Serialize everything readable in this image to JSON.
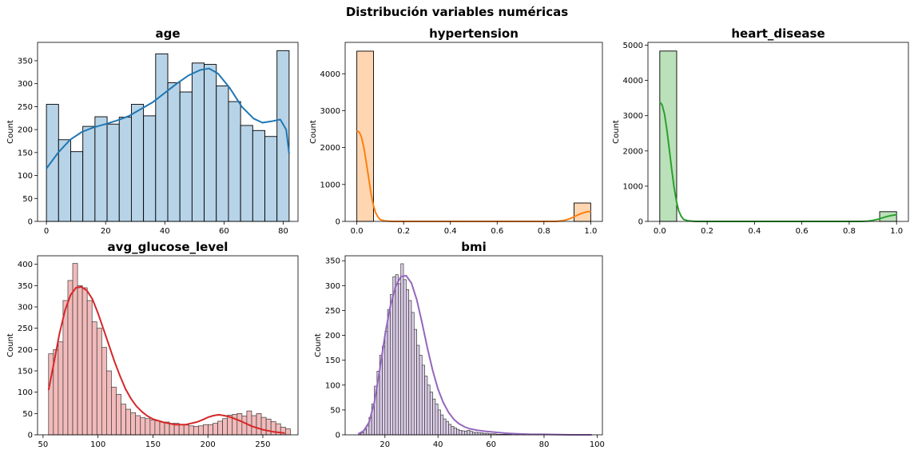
{
  "suptitle": "Distribución variables numéricas",
  "chart_data": [
    {
      "type": "histogram",
      "title": "age",
      "xlabel": "",
      "ylabel": "Count",
      "color": "#1f77b4",
      "xlim": [
        -3,
        85
      ],
      "ylim": [
        0,
        390
      ],
      "xticks": [
        0,
        20,
        40,
        60,
        80
      ],
      "yticks": [
        0,
        50,
        100,
        150,
        200,
        250,
        300,
        350
      ],
      "bins": [
        {
          "x0": 0.0,
          "x1": 4.1,
          "count": 255
        },
        {
          "x0": 4.1,
          "x1": 8.2,
          "count": 178
        },
        {
          "x0": 8.2,
          "x1": 12.3,
          "count": 152
        },
        {
          "x0": 12.3,
          "x1": 16.4,
          "count": 207
        },
        {
          "x0": 16.4,
          "x1": 20.5,
          "count": 228
        },
        {
          "x0": 20.5,
          "x1": 24.6,
          "count": 212
        },
        {
          "x0": 24.6,
          "x1": 28.7,
          "count": 227
        },
        {
          "x0": 28.7,
          "x1": 32.8,
          "count": 255
        },
        {
          "x0": 32.8,
          "x1": 36.9,
          "count": 230
        },
        {
          "x0": 36.9,
          "x1": 41.0,
          "count": 365
        },
        {
          "x0": 41.0,
          "x1": 45.1,
          "count": 302
        },
        {
          "x0": 45.1,
          "x1": 49.2,
          "count": 282
        },
        {
          "x0": 49.2,
          "x1": 53.3,
          "count": 345
        },
        {
          "x0": 53.3,
          "x1": 57.4,
          "count": 342
        },
        {
          "x0": 57.4,
          "x1": 61.5,
          "count": 295
        },
        {
          "x0": 61.5,
          "x1": 65.6,
          "count": 261
        },
        {
          "x0": 65.6,
          "x1": 69.7,
          "count": 209
        },
        {
          "x0": 69.7,
          "x1": 73.8,
          "count": 198
        },
        {
          "x0": 73.8,
          "x1": 77.9,
          "count": 185
        },
        {
          "x0": 77.9,
          "x1": 82.0,
          "count": 372
        }
      ],
      "kde": [
        [
          0,
          115
        ],
        [
          4,
          150
        ],
        [
          8,
          178
        ],
        [
          12,
          195
        ],
        [
          16,
          205
        ],
        [
          20,
          212
        ],
        [
          24,
          220
        ],
        [
          28,
          230
        ],
        [
          32,
          245
        ],
        [
          36,
          260
        ],
        [
          40,
          280
        ],
        [
          44,
          300
        ],
        [
          48,
          318
        ],
        [
          52,
          330
        ],
        [
          55,
          333
        ],
        [
          58,
          322
        ],
        [
          62,
          290
        ],
        [
          66,
          250
        ],
        [
          70,
          224
        ],
        [
          73,
          215
        ],
        [
          76,
          218
        ],
        [
          79,
          222
        ],
        [
          81,
          200
        ],
        [
          82,
          148
        ]
      ]
    },
    {
      "type": "histogram",
      "title": "hypertension",
      "xlabel": "",
      "ylabel": "Count",
      "color": "#ff7f0e",
      "xlim": [
        -0.05,
        1.05
      ],
      "ylim": [
        0,
        4850
      ],
      "xticks": [
        0.0,
        0.2,
        0.4,
        0.6,
        0.8,
        1.0
      ],
      "yticks": [
        0,
        1000,
        2000,
        3000,
        4000
      ],
      "bins": [
        {
          "x0": 0.0,
          "x1": 0.0714,
          "count": 4612
        },
        {
          "x0": 0.9286,
          "x1": 1.0,
          "count": 498
        }
      ],
      "kde": [
        [
          0,
          2450
        ],
        [
          0.01,
          2420
        ],
        [
          0.02,
          2280
        ],
        [
          0.03,
          2000
        ],
        [
          0.04,
          1620
        ],
        [
          0.05,
          1200
        ],
        [
          0.06,
          780
        ],
        [
          0.07,
          460
        ],
        [
          0.08,
          240
        ],
        [
          0.09,
          120
        ],
        [
          0.1,
          50
        ],
        [
          0.12,
          12
        ],
        [
          0.15,
          0
        ],
        [
          0.85,
          0
        ],
        [
          0.88,
          20
        ],
        [
          0.9,
          50
        ],
        [
          0.92,
          100
        ],
        [
          0.94,
          160
        ],
        [
          0.96,
          215
        ],
        [
          0.98,
          255
        ],
        [
          1.0,
          270
        ]
      ]
    },
    {
      "type": "histogram",
      "title": "heart_disease",
      "xlabel": "",
      "ylabel": "Count",
      "color": "#2ca02c",
      "xlim": [
        -0.05,
        1.05
      ],
      "ylim": [
        0,
        5080
      ],
      "xticks": [
        0.0,
        0.2,
        0.4,
        0.6,
        0.8,
        1.0
      ],
      "yticks": [
        0,
        1000,
        2000,
        3000,
        4000,
        5000
      ],
      "bins": [
        {
          "x0": 0.0,
          "x1": 0.0714,
          "count": 4834
        },
        {
          "x0": 0.9286,
          "x1": 1.0,
          "count": 276
        }
      ],
      "kde": [
        [
          0,
          3390
        ],
        [
          0.01,
          3300
        ],
        [
          0.02,
          3050
        ],
        [
          0.03,
          2600
        ],
        [
          0.04,
          2050
        ],
        [
          0.05,
          1500
        ],
        [
          0.06,
          980
        ],
        [
          0.07,
          580
        ],
        [
          0.08,
          300
        ],
        [
          0.09,
          150
        ],
        [
          0.1,
          60
        ],
        [
          0.12,
          15
        ],
        [
          0.15,
          0
        ],
        [
          0.85,
          0
        ],
        [
          0.88,
          10
        ],
        [
          0.9,
          30
        ],
        [
          0.92,
          60
        ],
        [
          0.94,
          100
        ],
        [
          0.96,
          140
        ],
        [
          0.98,
          170
        ],
        [
          1.0,
          190
        ]
      ]
    },
    {
      "type": "histogram",
      "title": "avg_glucose_level",
      "xlabel": "",
      "ylabel": "Count",
      "color": "#d62728",
      "xlim": [
        45,
        282
      ],
      "ylim": [
        0,
        420
      ],
      "xticks": [
        50,
        100,
        150,
        200,
        250
      ],
      "yticks": [
        0,
        50,
        100,
        150,
        200,
        250,
        300,
        350,
        400
      ],
      "bin_start": 55,
      "bin_width": 4.4,
      "counts": [
        190,
        200,
        218,
        315,
        362,
        402,
        350,
        345,
        315,
        265,
        250,
        205,
        150,
        112,
        95,
        72,
        60,
        52,
        45,
        40,
        38,
        35,
        33,
        30,
        30,
        27,
        27,
        24,
        23,
        21,
        20,
        21,
        24,
        24,
        27,
        32,
        38,
        46,
        48,
        50,
        44,
        56,
        45,
        50,
        41,
        37,
        31,
        26,
        18,
        14
      ],
      "kde": [
        [
          55,
          105
        ],
        [
          60,
          170
        ],
        [
          65,
          238
        ],
        [
          70,
          292
        ],
        [
          75,
          328
        ],
        [
          80,
          345
        ],
        [
          85,
          347
        ],
        [
          90,
          338
        ],
        [
          95,
          318
        ],
        [
          100,
          285
        ],
        [
          105,
          248
        ],
        [
          110,
          210
        ],
        [
          115,
          172
        ],
        [
          120,
          138
        ],
        [
          125,
          108
        ],
        [
          130,
          85
        ],
        [
          135,
          67
        ],
        [
          140,
          54
        ],
        [
          145,
          44
        ],
        [
          150,
          37
        ],
        [
          160,
          29
        ],
        [
          170,
          24
        ],
        [
          180,
          24
        ],
        [
          190,
          30
        ],
        [
          195,
          35
        ],
        [
          200,
          41
        ],
        [
          205,
          45
        ],
        [
          210,
          47
        ],
        [
          215,
          45
        ],
        [
          220,
          42
        ],
        [
          230,
          32
        ],
        [
          240,
          20
        ],
        [
          250,
          12
        ],
        [
          260,
          7
        ],
        [
          270,
          4
        ]
      ]
    },
    {
      "type": "histogram",
      "title": "bmi",
      "xlabel": "",
      "ylabel": "Count",
      "color": "#9467bd",
      "xlim": [
        5,
        102
      ],
      "ylim": [
        0,
        360
      ],
      "xticks": [
        20,
        40,
        60,
        80,
        100
      ],
      "yticks": [
        0,
        50,
        100,
        150,
        200,
        250,
        300,
        350
      ],
      "bin_start": 10,
      "bin_width": 1.0,
      "counts": [
        2,
        4,
        10,
        18,
        35,
        62,
        98,
        128,
        160,
        178,
        208,
        252,
        282,
        318,
        322,
        304,
        344,
        312,
        292,
        270,
        246,
        212,
        180,
        160,
        140,
        118,
        100,
        86,
        72,
        62,
        50,
        40,
        32,
        27,
        21,
        17,
        14,
        11,
        9,
        8,
        7,
        9,
        7,
        5,
        5,
        4,
        4,
        3,
        3,
        2,
        2,
        2,
        1,
        1,
        1,
        1,
        1,
        1,
        0,
        1,
        1,
        0,
        1,
        0,
        1,
        0,
        0,
        1,
        0,
        0,
        0,
        0,
        0,
        0,
        0,
        1,
        0,
        0,
        0,
        0,
        0,
        0,
        0,
        0,
        0,
        0,
        1
      ],
      "kde": [
        [
          10,
          2
        ],
        [
          12,
          8
        ],
        [
          14,
          25
        ],
        [
          16,
          65
        ],
        [
          18,
          130
        ],
        [
          20,
          200
        ],
        [
          22,
          258
        ],
        [
          24,
          298
        ],
        [
          26,
          318
        ],
        [
          28,
          320
        ],
        [
          30,
          305
        ],
        [
          32,
          272
        ],
        [
          34,
          225
        ],
        [
          36,
          175
        ],
        [
          38,
          130
        ],
        [
          40,
          92
        ],
        [
          42,
          65
        ],
        [
          44,
          45
        ],
        [
          46,
          31
        ],
        [
          48,
          22
        ],
        [
          50,
          16
        ],
        [
          52,
          12
        ],
        [
          55,
          9
        ],
        [
          58,
          7
        ],
        [
          62,
          5
        ],
        [
          66,
          3
        ],
        [
          70,
          2
        ],
        [
          75,
          1
        ],
        [
          80,
          1
        ],
        [
          90,
          0
        ],
        [
          98,
          0
        ]
      ]
    }
  ]
}
